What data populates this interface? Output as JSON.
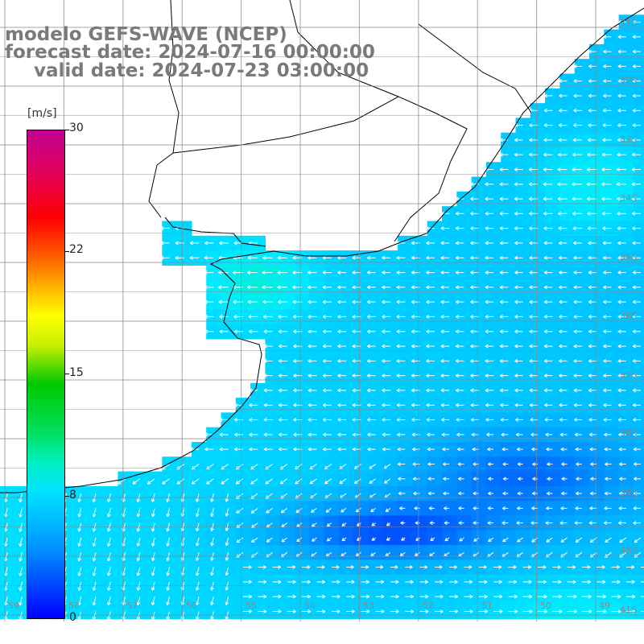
{
  "header": {
    "model": "modelo GEFS-WAVE (NCEP)",
    "forecast": "forecast date: 2024-07-16 00:00:00",
    "valid": "valid date: 2024-07-23 03:00:00"
  },
  "colorbar": {
    "unit": "[m/s]",
    "ticks": [
      "30",
      "22",
      "15",
      "8",
      "0"
    ],
    "colors": [
      "#0000ff",
      "#0090ff",
      "#00e4ff",
      "#00e060",
      "#00c800",
      "#ffff00",
      "#ff6000",
      "#ff0000",
      "#c00090"
    ]
  },
  "lat_labels": [
    "31S",
    "32S",
    "33S",
    "34S",
    "35S",
    "36S",
    "37S",
    "38S",
    "39S",
    "40S",
    "41S"
  ],
  "lon_labels": [
    "59",
    "58",
    "57",
    "56",
    "55",
    "54",
    "53",
    "52",
    "51",
    "50",
    "49"
  ],
  "field": {
    "variable": "wind speed and direction",
    "unit": "m/s",
    "range": [
      0,
      30
    ],
    "dominant_wind": "easterly near coast, northerly in southwest",
    "calm_zone": "around 39S-40S, 53W-49W"
  }
}
